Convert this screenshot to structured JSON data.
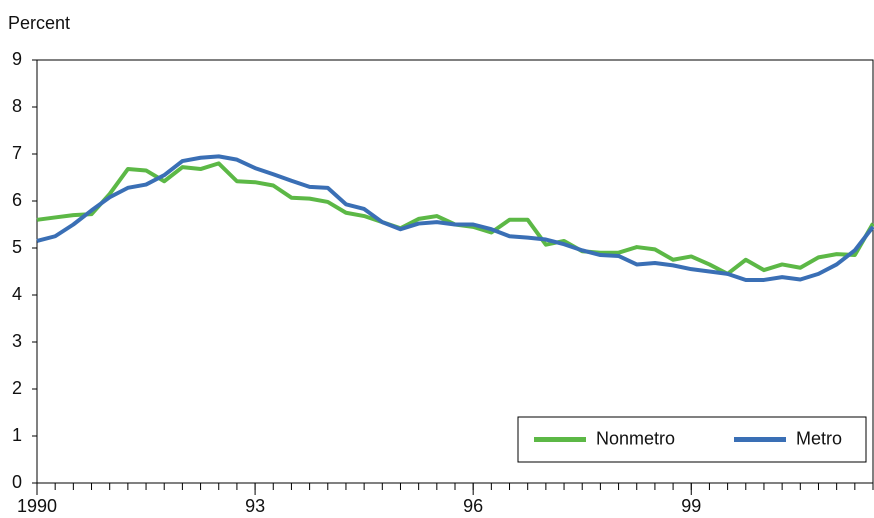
{
  "chart_data": {
    "type": "line",
    "y_label": "Percent",
    "x": [
      1990,
      1990.25,
      1990.5,
      1990.75,
      1991,
      1991.25,
      1991.5,
      1991.75,
      1992,
      1992.25,
      1992.5,
      1992.75,
      1993,
      1993.25,
      1993.5,
      1993.75,
      1994,
      1994.25,
      1994.5,
      1994.75,
      1995,
      1995.25,
      1995.5,
      1995.75,
      1996,
      1996.25,
      1996.5,
      1996.75,
      1997,
      1997.25,
      1997.5,
      1997.75,
      1998,
      1998.25,
      1998.5,
      1998.75,
      1999,
      1999.25,
      1999.5,
      1999.75,
      2000,
      2000.25,
      2000.5,
      2000.75,
      2001,
      2001.25,
      2001.5
    ],
    "series": [
      {
        "name": "Nonmetro",
        "color": "#5cb846",
        "values": [
          5.6,
          5.65,
          5.7,
          5.72,
          6.15,
          6.68,
          6.65,
          6.42,
          6.72,
          6.68,
          6.8,
          6.42,
          6.4,
          6.33,
          6.07,
          6.05,
          5.98,
          5.75,
          5.68,
          5.55,
          5.42,
          5.62,
          5.68,
          5.5,
          5.45,
          5.33,
          5.6,
          5.6,
          5.07,
          5.15,
          4.93,
          4.9,
          4.9,
          5.02,
          4.97,
          4.75,
          4.82,
          4.65,
          4.45,
          4.75,
          4.53,
          4.65,
          4.58,
          4.8,
          4.87,
          4.85,
          5.52
        ]
      },
      {
        "name": "Metro",
        "color": "#3a6fb5",
        "values": [
          5.15,
          5.25,
          5.5,
          5.8,
          6.08,
          6.28,
          6.35,
          6.55,
          6.85,
          6.92,
          6.95,
          6.88,
          6.7,
          6.57,
          6.43,
          6.3,
          6.28,
          5.93,
          5.83,
          5.55,
          5.4,
          5.52,
          5.55,
          5.5,
          5.5,
          5.4,
          5.25,
          5.22,
          5.18,
          5.08,
          4.95,
          4.85,
          4.83,
          4.65,
          4.68,
          4.63,
          4.55,
          4.5,
          4.45,
          4.32,
          4.32,
          4.38,
          4.33,
          4.45,
          4.65,
          4.95,
          5.45
        ]
      }
    ],
    "xlim": [
      1990,
      2001.5
    ],
    "xticks": [
      {
        "value": 1990,
        "label": "1990"
      },
      {
        "value": 1993,
        "label": "93"
      },
      {
        "value": 1996,
        "label": "96"
      },
      {
        "value": 1999,
        "label": "99"
      }
    ],
    "ylim": [
      0,
      9
    ],
    "yticks": [
      0,
      1,
      2,
      3,
      4,
      5,
      6,
      7,
      8,
      9
    ],
    "grid": false,
    "legend": "lower right"
  }
}
